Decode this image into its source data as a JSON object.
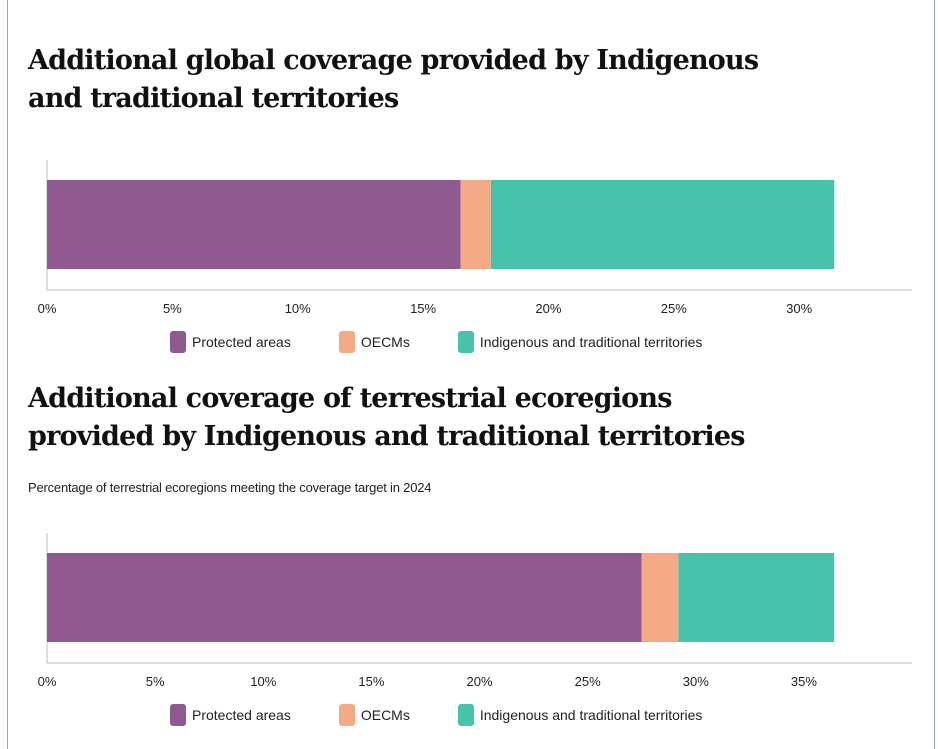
{
  "colors": {
    "protected": "#8e5a8f",
    "oecm": "#f4aa85",
    "indigenous": "#47c3ab",
    "axis": "#bdbdbd"
  },
  "chart_data": [
    {
      "type": "bar",
      "orientation": "horizontal",
      "stacked": true,
      "title": "Additional global coverage provided by Indigenous and traditional territories",
      "subtitle": "",
      "categories": [
        ""
      ],
      "series": [
        {
          "name": "Protected areas",
          "values": [
            16.5
          ]
        },
        {
          "name": "OECMs",
          "values": [
            1.2
          ]
        },
        {
          "name": "Indigenous and traditional territories",
          "values": [
            13.7
          ]
        }
      ],
      "xlim": [
        0,
        34.5
      ],
      "xticks": [
        0,
        5,
        10,
        15,
        20,
        25,
        30
      ],
      "tick_labels": [
        "0%",
        "5%",
        "10%",
        "15%",
        "20%",
        "25%",
        "30%"
      ],
      "grid": false,
      "legend": "bottom"
    },
    {
      "type": "bar",
      "orientation": "horizontal",
      "stacked": true,
      "title": "Additional coverage of terrestrial ecoregions provided by Indigenous and traditional territories",
      "subtitle": "Percentage of terrestrial ecoregions meeting the coverage target in 2024",
      "categories": [
        ""
      ],
      "series": [
        {
          "name": "Protected areas",
          "values": [
            27.5
          ]
        },
        {
          "name": "OECMs",
          "values": [
            1.7
          ]
        },
        {
          "name": "Indigenous and traditional territories",
          "values": [
            7.2
          ]
        }
      ],
      "xlim": [
        0,
        40
      ],
      "xticks": [
        0,
        5,
        10,
        15,
        20,
        25,
        30,
        35
      ],
      "tick_labels": [
        "0%",
        "5%",
        "10%",
        "15%",
        "20%",
        "25%",
        "30%",
        "35%"
      ],
      "grid": false,
      "legend": "bottom"
    }
  ]
}
